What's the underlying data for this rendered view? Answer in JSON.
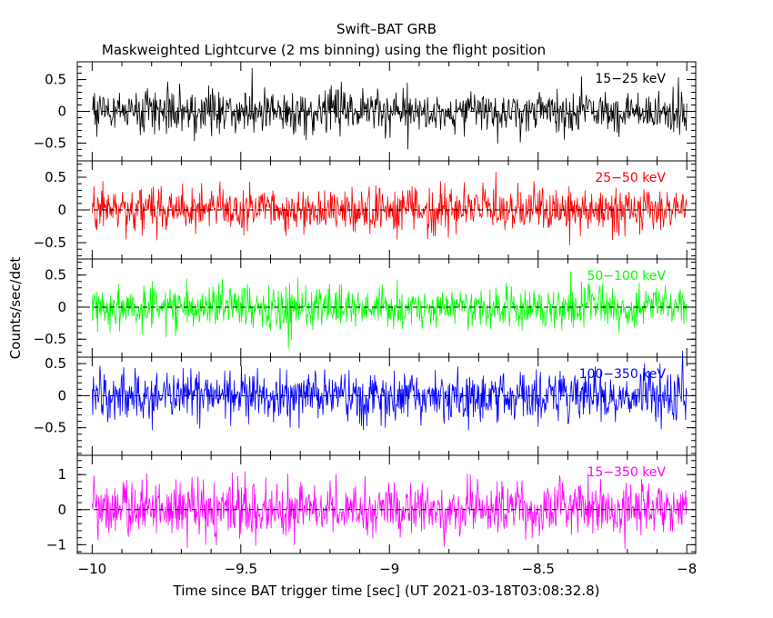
{
  "chart_data": {
    "type": "line",
    "title": "Swift–BAT GRB",
    "subtitle": "Maskweighted Lightcurve (2 ms binning) using the flight position",
    "xlabel": "Time since BAT trigger time [sec] (UT 2021-03-18T03:08:32.8)",
    "ylabel": "Counts/sec/det",
    "xlim": [
      -10.05,
      -7.97
    ],
    "x_ticks": [
      {
        "value": -10,
        "label": "−10"
      },
      {
        "value": -9.5,
        "label": "−9.5"
      },
      {
        "value": -9,
        "label": "−9"
      },
      {
        "value": -8.5,
        "label": "−8.5"
      },
      {
        "value": -8,
        "label": "−8"
      }
    ],
    "x_data_range": [
      -10.0,
      -8.0
    ],
    "bin_width_s": 0.002,
    "grid": false,
    "zero_line": "dashed",
    "panels": [
      {
        "band": "15−25 keV",
        "color": "#000000",
        "ylim": [
          -0.78,
          0.78
        ],
        "y_ticks": [
          {
            "value": 0.5,
            "label": "0.5"
          },
          {
            "value": 0,
            "label": "0"
          },
          {
            "value": -0.5,
            "label": "−0.5"
          }
        ],
        "noise_sigma": 0.17,
        "peak_abs": 0.7
      },
      {
        "band": "25−50 keV",
        "color": "#ff0000",
        "ylim": [
          -0.75,
          0.75
        ],
        "y_ticks": [
          {
            "value": 0.5,
            "label": "0.5"
          },
          {
            "value": 0,
            "label": "0"
          },
          {
            "value": -0.5,
            "label": "−0.5"
          }
        ],
        "noise_sigma": 0.17,
        "peak_abs": 0.7
      },
      {
        "band": "50−100 keV",
        "color": "#00ff00",
        "ylim": [
          -0.78,
          0.75
        ],
        "y_ticks": [
          {
            "value": 0.5,
            "label": "0.5"
          },
          {
            "value": 0,
            "label": "0"
          },
          {
            "value": -0.5,
            "label": "−0.5"
          }
        ],
        "noise_sigma": 0.17,
        "peak_abs": 0.7
      },
      {
        "band": "100−350 keV",
        "color": "#0000ff",
        "ylim": [
          -0.93,
          0.6
        ],
        "y_ticks": [
          {
            "value": 0.5,
            "label": "0.5"
          },
          {
            "value": 0,
            "label": "0"
          },
          {
            "value": -0.5,
            "label": "−0.5"
          }
        ],
        "noise_sigma": 0.2,
        "peak_abs": 0.85
      },
      {
        "band": "15−350 keV",
        "color": "#ff00ff",
        "ylim": [
          -1.25,
          1.55
        ],
        "y_ticks": [
          {
            "value": 1,
            "label": "1"
          },
          {
            "value": 0,
            "label": "0"
          },
          {
            "value": -1,
            "label": "−1"
          }
        ],
        "noise_sigma": 0.38,
        "peak_abs": 1.45
      }
    ]
  }
}
